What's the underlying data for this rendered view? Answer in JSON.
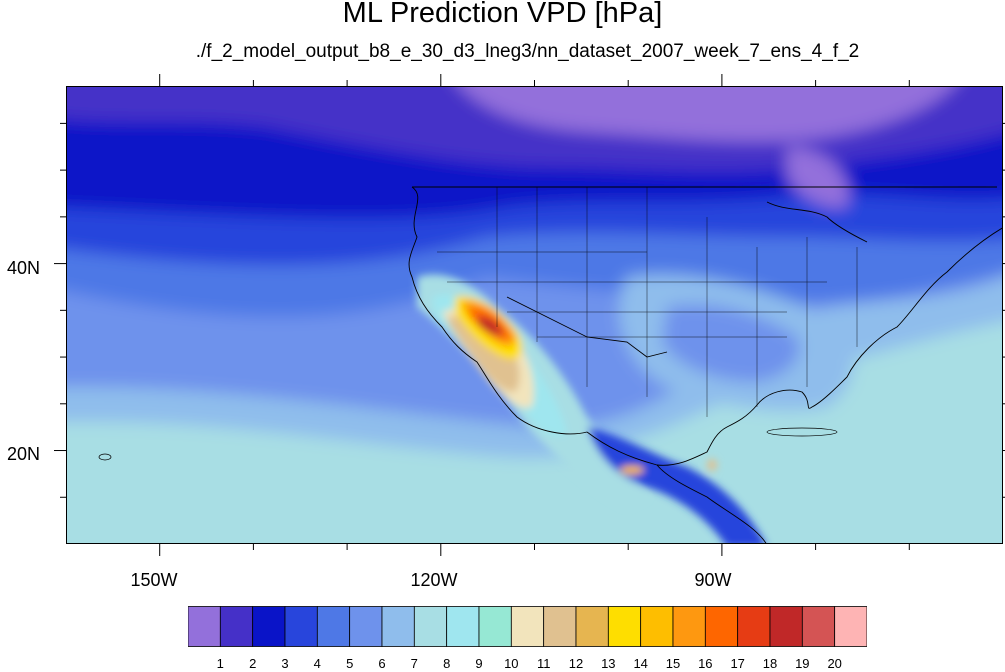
{
  "title": "ML Prediction VPD [hPa]",
  "subtitle": "./f_2_model_output_b8_e_30_d3_lneg3/nn_dataset_2007_week_7_ens_4_f_2",
  "map": {
    "projection": "cylindrical-equidistant",
    "lon_range": [
      -160,
      -60
    ],
    "lat_range": [
      10,
      59
    ],
    "lat_labels": [
      {
        "value": 40,
        "text": "40N"
      },
      {
        "value": 20,
        "text": "20N"
      }
    ],
    "lon_labels": [
      {
        "value": -150,
        "text": "150W"
      },
      {
        "value": -120,
        "text": "120W"
      },
      {
        "value": -90,
        "text": "90W"
      }
    ],
    "lat_ticks": [
      15,
      20,
      25,
      30,
      35,
      40,
      45,
      50,
      55
    ],
    "lon_ticks": [
      -150,
      -140,
      -130,
      -120,
      -110,
      -100,
      -90,
      -80,
      -70
    ],
    "lon_ticks_labeled": [
      -150,
      -120,
      -90
    ],
    "lat_ticks_labeled": [
      20,
      40
    ]
  },
  "colorbar": {
    "levels": [
      "1",
      "2",
      "3",
      "4",
      "5",
      "6",
      "7",
      "8",
      "9",
      "10",
      "11",
      "12",
      "13",
      "14",
      "15",
      "16",
      "17",
      "18",
      "19",
      "20"
    ],
    "colors": [
      "#9370db",
      "#4530c8",
      "#0a14c8",
      "#2845dc",
      "#4e78e6",
      "#6e92ec",
      "#8fbdec",
      "#a8dee4",
      "#9fe6ef",
      "#96e8d4",
      "#f2e4bc",
      "#e0c190",
      "#e6b550",
      "#fede00",
      "#febe00",
      "#fe9810",
      "#fe6600",
      "#e63c14",
      "#c02828",
      "#d45454",
      "#feb4b4"
    ]
  }
}
